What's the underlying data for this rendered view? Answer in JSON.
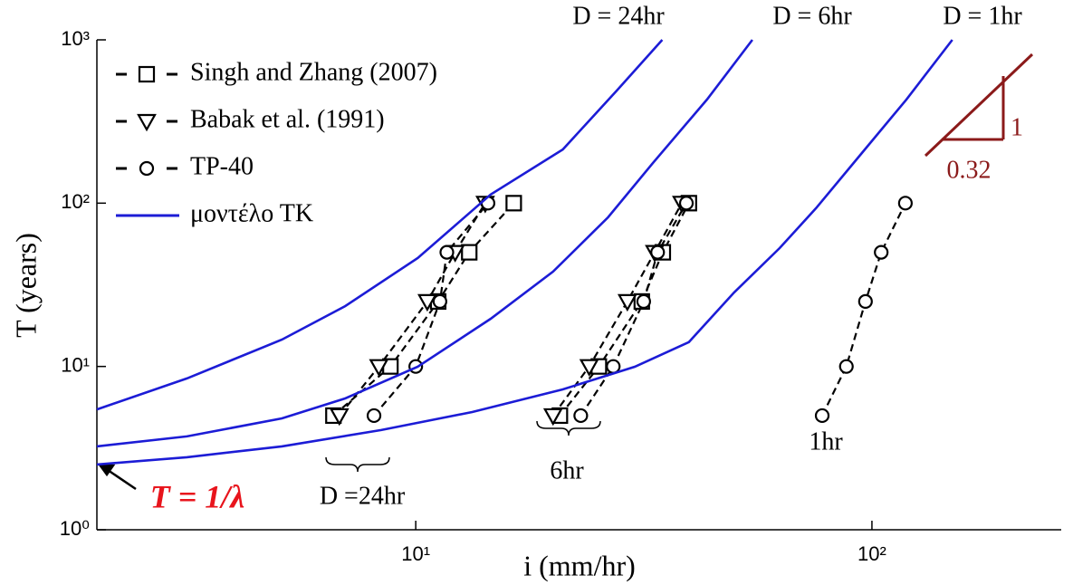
{
  "chart_data": {
    "type": "line",
    "xlabel": "i (mm/hr)",
    "ylabel": "T (years)",
    "xscale": "log",
    "yscale": "log",
    "xlim": [
      2,
      260
    ],
    "ylim": [
      1,
      1000
    ],
    "xticks": [
      {
        "value": 10,
        "label": "10¹"
      },
      {
        "value": 100,
        "label": "10²"
      }
    ],
    "yticks": [
      {
        "value": 1,
        "label": "10⁰"
      },
      {
        "value": 10,
        "label": "10¹"
      },
      {
        "value": 100,
        "label": "10²"
      },
      {
        "value": 1000,
        "label": "10³"
      }
    ],
    "legend": "upper left",
    "series": [
      {
        "name": "Singh and Zhang (2007)",
        "color": "#000000",
        "marker": "square",
        "dashed": true,
        "x": [
          6.6,
          8.8,
          11.2,
          13.1,
          16.4,
          null,
          20.7,
          25.2,
          31.3,
          34.8,
          39.7
        ],
        "y": [
          5,
          10,
          25,
          50,
          100,
          null,
          5,
          10,
          25,
          50,
          100
        ]
      },
      {
        "name": "Babak et al. (1991)",
        "color": "#000000",
        "marker": "triangle-down",
        "dashed": true,
        "x": [
          6.8,
          8.3,
          10.6,
          12.2,
          14.2,
          null,
          20.0,
          24.0,
          29.1,
          33.4,
          38.3
        ],
        "y": [
          5,
          10,
          25,
          50,
          100,
          null,
          5,
          10,
          25,
          50,
          100
        ]
      },
      {
        "name": "TP-40",
        "color": "#000000",
        "marker": "circle",
        "dashed": true,
        "x": [
          8.1,
          10.0,
          11.3,
          11.7,
          14.4,
          null,
          23.0,
          27.1,
          31.6,
          33.9,
          39.2,
          null,
          77.8,
          87.9,
          96.8,
          104.8,
          118.4
        ],
        "y": [
          5,
          10,
          25,
          50,
          100,
          null,
          5,
          10,
          25,
          50,
          100,
          null,
          5,
          10,
          25,
          50,
          100
        ]
      },
      {
        "name": "μοντέλο ΤΚ",
        "color": "#1c1cd6",
        "marker": "none",
        "dashed": false,
        "x": [
          2.0,
          3.15,
          5.09,
          7.0,
          10.1,
          14.6,
          21.0,
          27.6,
          34.7,
          null,
          2.0,
          3.15,
          5.09,
          7.0,
          10.1,
          14.6,
          20.0,
          26.4,
          33.1,
          43.5,
          54.7,
          null,
          2.0,
          3.15,
          5.09,
          8.4,
          13.3,
          21.0,
          30.2,
          39.7,
          49.9,
          62.8,
          75.4,
          94.7,
          119,
          150
        ],
        "y": [
          5.46,
          8.44,
          14.6,
          23.4,
          46.1,
          113,
          213,
          490,
          1000,
          null,
          3.24,
          3.73,
          4.81,
          6.37,
          9.96,
          19.6,
          38.1,
          81.9,
          176,
          431,
          1000,
          null,
          2.51,
          2.78,
          3.24,
          4.08,
          5.26,
          7.24,
          9.96,
          14.1,
          28.4,
          53.1,
          93.1,
          200,
          431,
          1000
        ]
      }
    ],
    "annotations": [
      {
        "text": "D = 24hr"
      },
      {
        "text": "D = 6hr"
      },
      {
        "text": "D = 1hr"
      },
      {
        "text": "D =24hr"
      },
      {
        "text": "6hr"
      },
      {
        "text": "1hr"
      },
      {
        "text": "T = 1/λ"
      },
      {
        "text": "1"
      },
      {
        "text": "0.32"
      }
    ]
  }
}
